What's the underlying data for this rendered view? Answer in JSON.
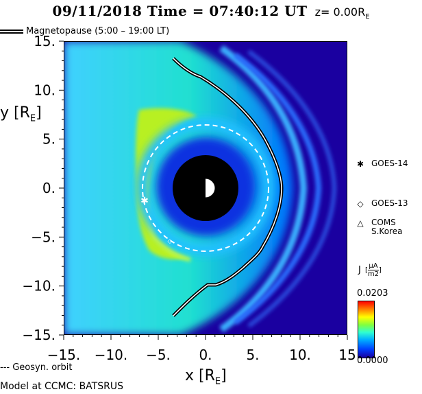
{
  "title": {
    "date_time": "09/11/2018 Time = 07:40:12 UT",
    "z_prefix": "z= 0.00R",
    "z_sub": "E"
  },
  "legend": {
    "magnetopause": "Magnetopause (5:00 – 19:00 LT)",
    "geosyn": "--- Geosyn. orbit"
  },
  "axes": {
    "x_label_main": "x [R",
    "x_label_sub": "E",
    "x_label_end": "]",
    "y_label_main": "y [R",
    "y_label_sub": "E",
    "y_label_end": "]",
    "x_ticks": [
      "-15.",
      "-10.",
      "-5.",
      "0.",
      "5.",
      "10.",
      "15"
    ],
    "y_ticks": [
      "15.",
      "10.",
      "5.",
      "0.",
      "-5.",
      "-10.",
      "-15."
    ],
    "x_range": [
      -15,
      15
    ],
    "y_range": [
      -15,
      15
    ]
  },
  "satellites": [
    {
      "symbol": "✱",
      "label": "GOES-14"
    },
    {
      "symbol": "◇",
      "label": "GOES-13"
    },
    {
      "symbol": "△",
      "label": "COMS\nS.Korea"
    }
  ],
  "colorbar": {
    "title": "J",
    "unit_num": "μA",
    "unit_den": "m2",
    "max": "0.0203",
    "min": "0.0000"
  },
  "footer": "Model at CCMC: BATSRUS",
  "colors": {
    "background_field": "#1a00a0",
    "magnetopause": "#000000",
    "orbit": "#ffffff"
  }
}
